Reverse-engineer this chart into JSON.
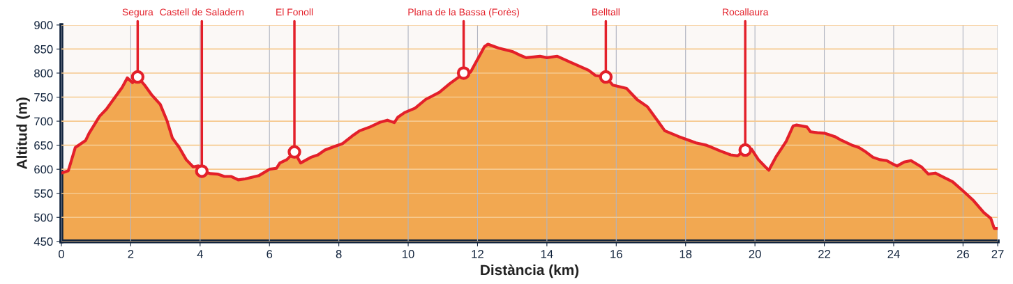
{
  "chart_data": {
    "type": "area",
    "xlabel": "Distància (km)",
    "ylabel": "Altitud (m)",
    "xlim": [
      0,
      27
    ],
    "ylim": [
      450,
      900
    ],
    "xticks": [
      0,
      2,
      4,
      6,
      8,
      10,
      12,
      14,
      16,
      18,
      20,
      22,
      24,
      26,
      27
    ],
    "yticks": [
      450,
      500,
      550,
      600,
      650,
      700,
      750,
      800,
      850,
      900
    ],
    "grid": true,
    "series": [
      {
        "color": "#e3202a",
        "x": [
          0,
          0.2,
          0.4,
          0.7,
          0.8,
          1.1,
          1.3,
          1.6,
          1.75,
          1.9,
          2.05,
          2.2,
          2.4,
          2.6,
          2.85,
          3.05,
          3.2,
          3.4,
          3.6,
          3.8,
          3.95,
          4.05,
          4.3,
          4.5,
          4.7,
          4.9,
          5.1,
          5.3,
          5.7,
          6.0,
          6.2,
          6.3,
          6.5,
          6.72,
          6.9,
          7.2,
          7.4,
          7.6,
          7.9,
          8.1,
          8.4,
          8.6,
          8.9,
          9.2,
          9.4,
          9.6,
          9.7,
          9.9,
          10.2,
          10.5,
          10.9,
          11.2,
          11.6,
          11.8,
          12.2,
          12.3,
          12.6,
          13.0,
          13.2,
          13.4,
          13.8,
          14.0,
          14.3,
          14.7,
          15.2,
          15.4,
          15.7,
          15.9,
          16.3,
          16.6,
          16.9,
          17.2,
          17.4,
          17.8,
          18.3,
          18.6,
          19.0,
          19.3,
          19.5,
          19.72,
          19.9,
          20.1,
          20.3,
          20.4,
          20.6,
          20.9,
          21.1,
          21.2,
          21.5,
          21.6,
          21.8,
          22.0,
          22.3,
          22.5,
          22.8,
          23.0,
          23.2,
          23.4,
          23.6,
          23.8,
          24.0,
          24.1,
          24.3,
          24.5,
          24.8,
          25.0,
          25.2,
          25.4,
          25.7,
          26.0,
          26.3,
          26.6,
          26.8,
          26.9,
          27.0
        ],
        "values": [
          592,
          597,
          645,
          660,
          675,
          710,
          725,
          755,
          770,
          790,
          780,
          792,
          775,
          755,
          735,
          700,
          665,
          645,
          620,
          605,
          607,
          596,
          591,
          590,
          585,
          585,
          578,
          580,
          587,
          600,
          602,
          613,
          620,
          636,
          613,
          625,
          630,
          640,
          648,
          653,
          670,
          680,
          688,
          698,
          702,
          697,
          708,
          718,
          727,
          745,
          760,
          778,
          799,
          802,
          855,
          860,
          852,
          845,
          838,
          832,
          835,
          832,
          835,
          822,
          806,
          795,
          792,
          775,
          768,
          745,
          730,
          700,
          680,
          668,
          655,
          650,
          638,
          630,
          628,
          640,
          642,
          620,
          605,
          598,
          625,
          658,
          690,
          692,
          688,
          678,
          676,
          675,
          668,
          660,
          650,
          645,
          636,
          625,
          620,
          618,
          610,
          607,
          615,
          618,
          605,
          590,
          592,
          585,
          574,
          555,
          535,
          510,
          498,
          477,
          477
        ]
      }
    ],
    "annotations": [
      {
        "text": "Segura",
        "x": 2.2,
        "y": 792
      },
      {
        "text": "Castell de Saladern",
        "x": 4.05,
        "y": 596
      },
      {
        "text": "El Fonoll",
        "x": 6.72,
        "y": 636
      },
      {
        "text": "Plana de la Bassa (Forès)",
        "x": 11.6,
        "y": 800
      },
      {
        "text": "Belltall",
        "x": 15.7,
        "y": 792
      },
      {
        "text": "Rocallaura",
        "x": 19.72,
        "y": 640
      }
    ]
  }
}
